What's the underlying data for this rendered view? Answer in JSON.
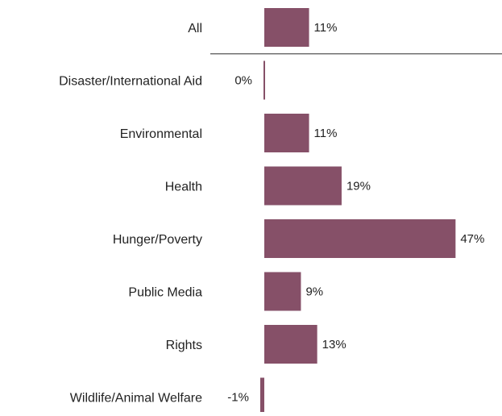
{
  "chart_data": {
    "type": "bar",
    "orientation": "horizontal",
    "title": "",
    "xlabel": "",
    "ylabel": "",
    "categories": [
      "All",
      "Disaster/International Aid",
      "Environmental",
      "Health",
      "Hunger/Poverty",
      "Public Media",
      "Rights",
      "Wildlife/Animal Welfare"
    ],
    "values": [
      11,
      0,
      11,
      19,
      47,
      9,
      13,
      -1
    ],
    "value_labels": [
      "11%",
      "0%",
      "11%",
      "19%",
      "47%",
      "9%",
      "13%",
      "-1%"
    ],
    "unit": "%",
    "bar_color": "#865068",
    "separator_after_first": true,
    "separator_color": "#555555",
    "grid": false,
    "legend": false
  }
}
